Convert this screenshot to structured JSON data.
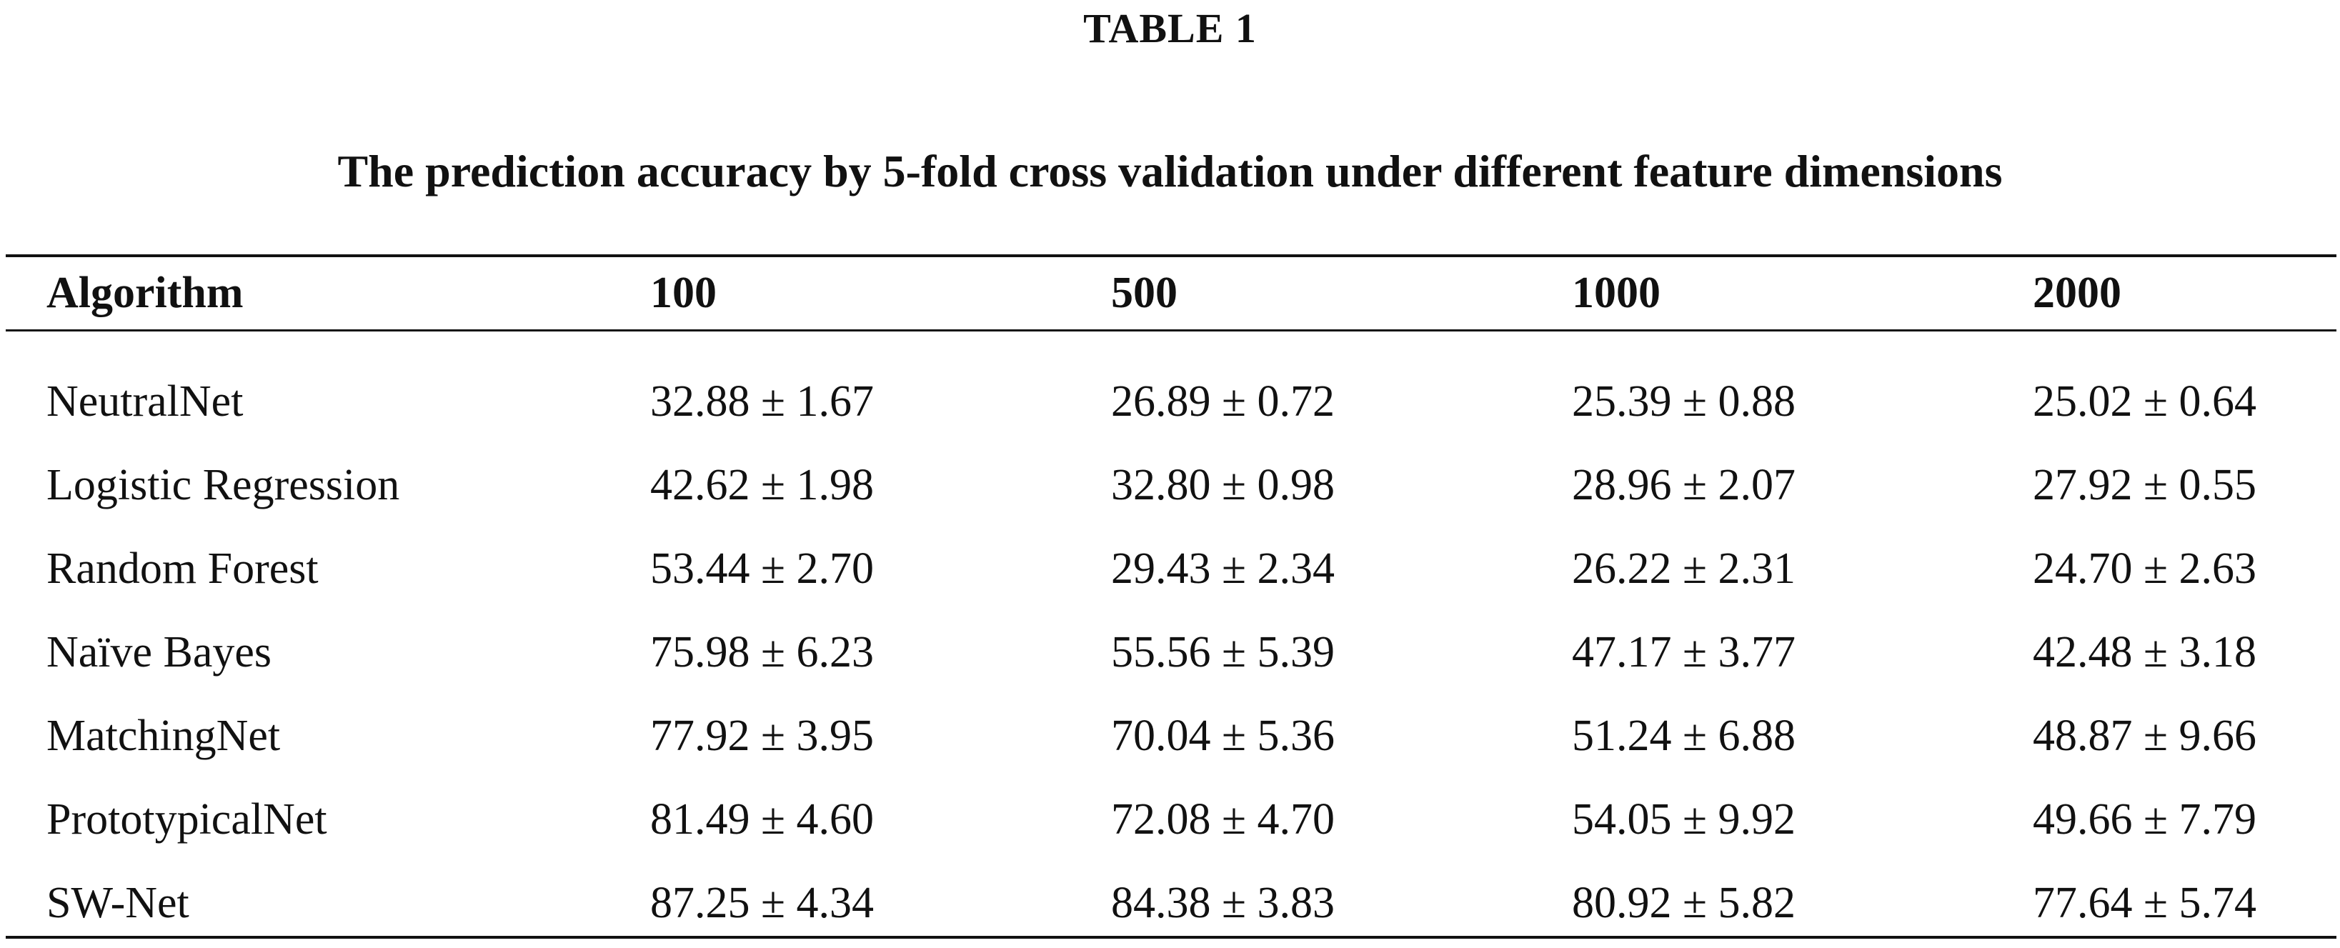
{
  "document": {
    "table_number": "TABLE 1",
    "caption": "The prediction accuracy by 5-fold cross validation under different feature dimensions"
  },
  "table": {
    "headers": [
      "Algorithm",
      "100",
      "500",
      "1000",
      "2000"
    ],
    "rows": [
      [
        "NeutralNet",
        "32.88 ± 1.67",
        "26.89 ± 0.72",
        "25.39 ± 0.88",
        "25.02 ± 0.64"
      ],
      [
        "Logistic Regression",
        "42.62 ± 1.98",
        "32.80 ± 0.98",
        "28.96 ± 2.07",
        "27.92 ± 0.55"
      ],
      [
        "Random Forest",
        "53.44 ± 2.70",
        "29.43 ± 2.34",
        "26.22 ± 2.31",
        "24.70 ± 2.63"
      ],
      [
        "Naïve Bayes",
        "75.98 ± 6.23",
        "55.56 ± 5.39",
        "47.17 ± 3.77",
        "42.48 ± 3.18"
      ],
      [
        "MatchingNet",
        "77.92 ± 3.95",
        "70.04 ± 5.36",
        "51.24 ± 6.88",
        "48.87 ± 9.66"
      ],
      [
        "PrototypicalNet",
        "81.49 ± 4.60",
        "72.08 ± 4.70",
        "54.05 ± 9.92",
        "49.66 ± 7.79"
      ],
      [
        "SW-Net",
        "87.25 ± 4.34",
        "84.38 ± 3.83",
        "80.92 ± 5.82",
        "77.64 ± 5.74"
      ]
    ]
  }
}
